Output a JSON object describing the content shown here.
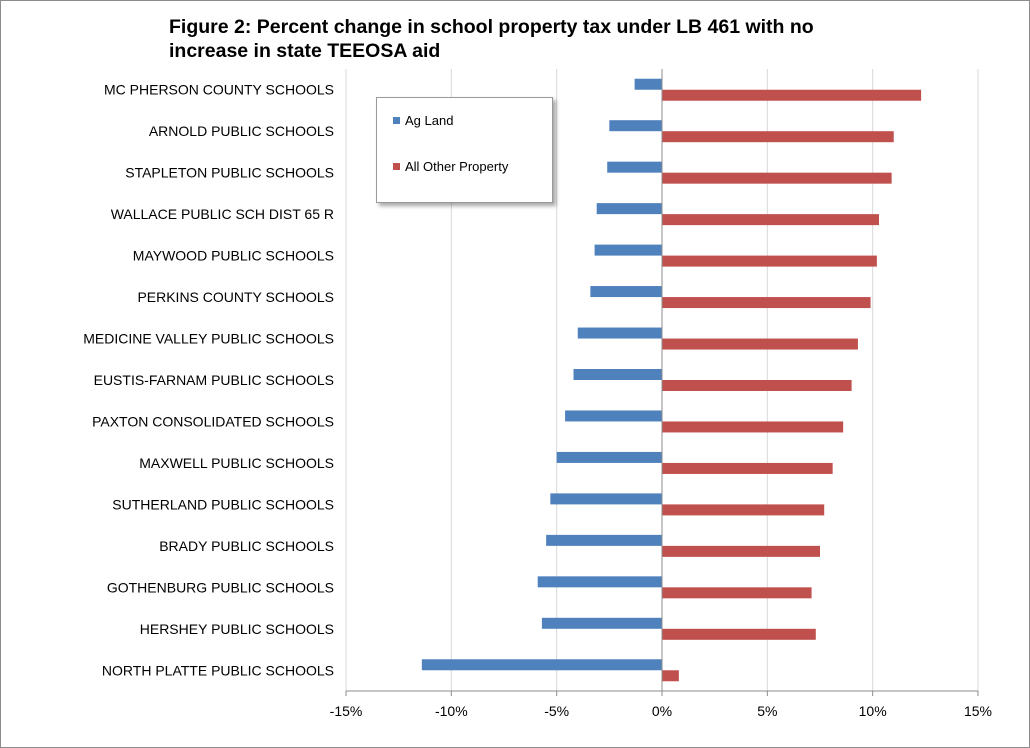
{
  "chart_data": {
    "type": "bar",
    "orientation": "horizontal",
    "title_lines": [
      "Figure 2: Percent change in school property tax under LB 461 with no",
      "increase in state TEEOSA aid"
    ],
    "categories": [
      "MC PHERSON COUNTY SCHOOLS",
      "ARNOLD PUBLIC SCHOOLS",
      "STAPLETON PUBLIC SCHOOLS",
      "WALLACE PUBLIC SCH DIST 65 R",
      "MAYWOOD PUBLIC SCHOOLS",
      "PERKINS COUNTY SCHOOLS",
      "MEDICINE VALLEY PUBLIC SCHOOLS",
      "EUSTIS-FARNAM PUBLIC SCHOOLS",
      "PAXTON CONSOLIDATED SCHOOLS",
      "MAXWELL PUBLIC SCHOOLS",
      "SUTHERLAND PUBLIC SCHOOLS",
      "BRADY PUBLIC SCHOOLS",
      "GOTHENBURG PUBLIC SCHOOLS",
      "HERSHEY PUBLIC SCHOOLS",
      "NORTH PLATTE PUBLIC SCHOOLS"
    ],
    "series": [
      {
        "name": "Ag Land",
        "color": "#4f81bd",
        "values": [
          -1.3,
          -2.5,
          -2.6,
          -3.1,
          -3.2,
          -3.4,
          -4.0,
          -4.2,
          -4.6,
          -5.0,
          -5.3,
          -5.5,
          -5.9,
          -5.7,
          -11.4
        ]
      },
      {
        "name": "All Other Property",
        "color": "#c0504d",
        "values": [
          12.3,
          11.0,
          10.9,
          10.3,
          10.2,
          9.9,
          9.3,
          9.0,
          8.6,
          8.1,
          7.7,
          7.5,
          7.1,
          7.3,
          0.8
        ]
      }
    ],
    "xlim": [
      -15,
      15
    ],
    "xticks": [
      -15,
      -10,
      -5,
      0,
      5,
      10,
      15
    ],
    "xtick_labels": [
      "-15%",
      "-10%",
      "-5%",
      "0%",
      "5%",
      "10%",
      "15%"
    ],
    "grid": "vertical",
    "legend_position": "top-left inside plot"
  }
}
